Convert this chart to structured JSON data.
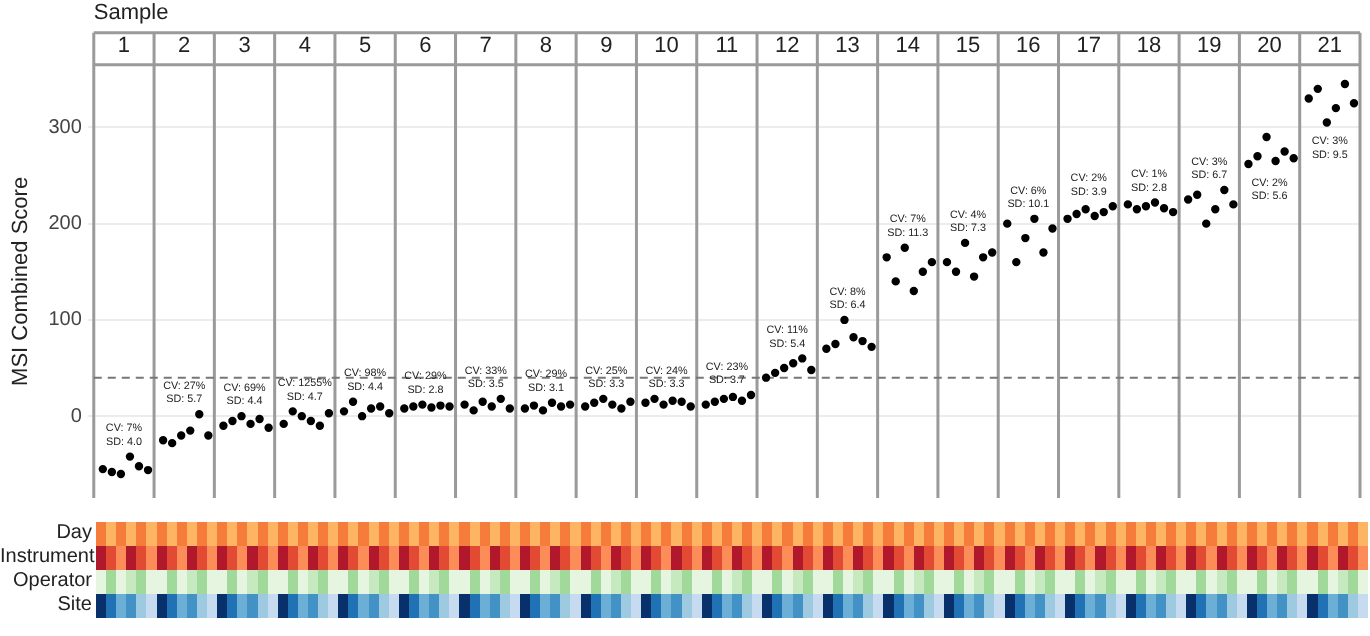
{
  "chart_data": {
    "type": "scatter",
    "xlabel": "Sample",
    "ylabel": "MSI Combined Score",
    "xlim": [
      0.5,
      21.5
    ],
    "xticks": [
      1,
      2,
      3,
      4,
      5,
      6,
      7,
      8,
      9,
      10,
      11,
      12,
      13,
      14,
      15,
      16,
      17,
      18,
      19,
      20,
      21
    ],
    "ylim": [
      -85,
      365
    ],
    "yticks": [
      0,
      100,
      200,
      300
    ],
    "grid": "y",
    "legend": false,
    "marker": "circle",
    "ref_lines": [
      {
        "axis": "y",
        "value": 40,
        "line_style": "dashed",
        "color": "#777777"
      }
    ],
    "series": [
      {
        "color": "#000000",
        "x": [
          0.65,
          0.8,
          0.95,
          1.1,
          1.25,
          1.4,
          1.65,
          1.8,
          1.95,
          2.1,
          2.25,
          2.4,
          2.65,
          2.8,
          2.95,
          3.1,
          3.25,
          3.4,
          3.65,
          3.8,
          3.95,
          4.1,
          4.25,
          4.4,
          4.65,
          4.8,
          4.95,
          5.1,
          5.25,
          5.4,
          5.65,
          5.8,
          5.95,
          6.1,
          6.25,
          6.4,
          6.65,
          6.8,
          6.95,
          7.1,
          7.25,
          7.4,
          7.65,
          7.8,
          7.95,
          8.1,
          8.25,
          8.4,
          8.65,
          8.8,
          8.95,
          9.1,
          9.25,
          9.4,
          9.65,
          9.8,
          9.95,
          10.1,
          10.25,
          10.4,
          10.65,
          10.8,
          10.95,
          11.1,
          11.25,
          11.4,
          11.65,
          11.8,
          11.95,
          12.1,
          12.25,
          12.4,
          12.65,
          12.8,
          12.95,
          13.1,
          13.25,
          13.4,
          13.65,
          13.8,
          13.95,
          14.1,
          14.25,
          14.4,
          14.65,
          14.8,
          14.95,
          15.1,
          15.25,
          15.4,
          15.65,
          15.8,
          15.95,
          16.1,
          16.25,
          16.4,
          16.65,
          16.8,
          16.95,
          17.1,
          17.25,
          17.4,
          17.65,
          17.8,
          17.95,
          18.1,
          18.25,
          18.4,
          18.65,
          18.8,
          18.95,
          19.1,
          19.25,
          19.4,
          19.65,
          19.8,
          19.95,
          20.1,
          20.25,
          20.4,
          20.65,
          20.8,
          20.95,
          21.1,
          21.25,
          21.4
        ],
        "values": [
          -55,
          -58,
          -60,
          -42,
          -52,
          -56,
          -25,
          -28,
          -20,
          -15,
          2,
          -20,
          -10,
          -5,
          0,
          -8,
          -3,
          -12,
          -8,
          5,
          0,
          -5,
          -10,
          3,
          5,
          15,
          0,
          8,
          10,
          3,
          8,
          10,
          12,
          9,
          11,
          10,
          12,
          6,
          15,
          10,
          18,
          8,
          8,
          11,
          6,
          14,
          10,
          12,
          10,
          14,
          18,
          12,
          8,
          15,
          14,
          18,
          12,
          16,
          15,
          10,
          12,
          15,
          18,
          20,
          16,
          22,
          40,
          45,
          50,
          55,
          60,
          48,
          70,
          75,
          100,
          82,
          78,
          72,
          165,
          140,
          175,
          130,
          150,
          160,
          160,
          150,
          180,
          145,
          165,
          170,
          200,
          160,
          185,
          205,
          170,
          195,
          205,
          210,
          215,
          208,
          212,
          218,
          220,
          215,
          218,
          222,
          216,
          212,
          225,
          230,
          200,
          215,
          235,
          220,
          262,
          270,
          290,
          265,
          275,
          268,
          330,
          340,
          305,
          320,
          345,
          325
        ]
      }
    ],
    "annotations": [
      "CV: 7%\nSD: 4.0",
      "CV: 27%\nSD: 5.7",
      "CV: 69%\nSD: 4.4",
      "CV: 1255%\nSD: 4.7",
      "CV: 98%\nSD: 4.4",
      "CV: 29%\nSD: 2.8",
      "CV: 33%\nSD: 3.5",
      "CV: 29%\nSD: 3.1",
      "CV: 25%\nSD: 3.3",
      "CV: 24%\nSD: 3.3",
      "CV: 23%\nSD: 3.7",
      "CV: 11%\nSD: 5.4",
      "CV: 8%\nSD: 6.4",
      "CV: 7%\nSD: 11.3",
      "CV: 4%\nSD: 7.3",
      "CV: 6%\nSD: 10.1",
      "CV: 2%\nSD: 3.9",
      "CV: 1%\nSD: 2.8",
      "CV: 3%\nSD: 6.7",
      "CV: 2%\nSD: 5.6",
      "CV: 3%\nSD: 9.5",
      "Day",
      "Instrument",
      "Operator",
      "Site"
    ]
  }
}
